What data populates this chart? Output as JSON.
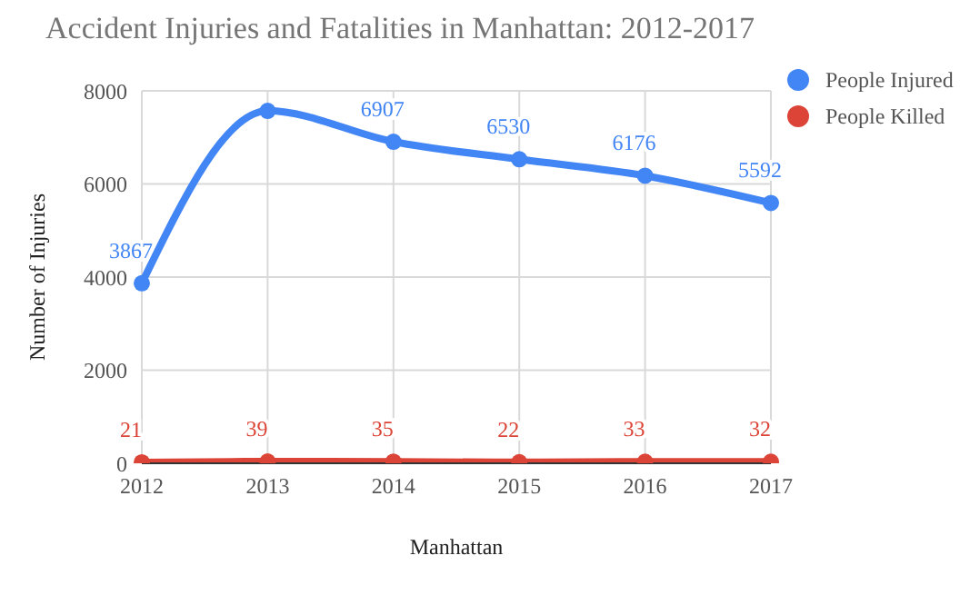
{
  "chart_data": {
    "type": "line",
    "title": "Accident Injuries and Fatalities in Manhattan: 2012-2017",
    "xlabel": "Manhattan",
    "ylabel": "Number of Injuries",
    "categories": [
      "2012",
      "2013",
      "2014",
      "2015",
      "2016",
      "2017"
    ],
    "series": [
      {
        "name": "People Injured",
        "color": "#4285f4",
        "values": [
          3867,
          7570,
          6907,
          6530,
          6176,
          5592
        ],
        "value_labels": [
          "3867",
          null,
          "6907",
          "6530",
          "6176",
          "5592"
        ]
      },
      {
        "name": "People Killed",
        "color": "#db4437",
        "values": [
          21,
          39,
          35,
          22,
          33,
          32
        ],
        "value_labels": [
          "21",
          "39",
          "35",
          "22",
          "33",
          "32"
        ]
      }
    ],
    "ylim": [
      0,
      8000
    ],
    "yticks": [
      0,
      2000,
      4000,
      6000,
      8000
    ],
    "grid": true,
    "legend": "top right",
    "marker": "circle",
    "line_style": "solid"
  }
}
